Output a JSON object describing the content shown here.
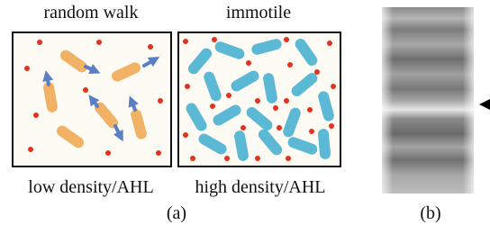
{
  "panel_a": {
    "left": {
      "title": "random walk",
      "caption": "low density/AHL"
    },
    "right": {
      "title": "immotile",
      "caption": "high density/AHL"
    },
    "label": "(a)"
  },
  "panel_b": {
    "label": "(b)"
  }
}
